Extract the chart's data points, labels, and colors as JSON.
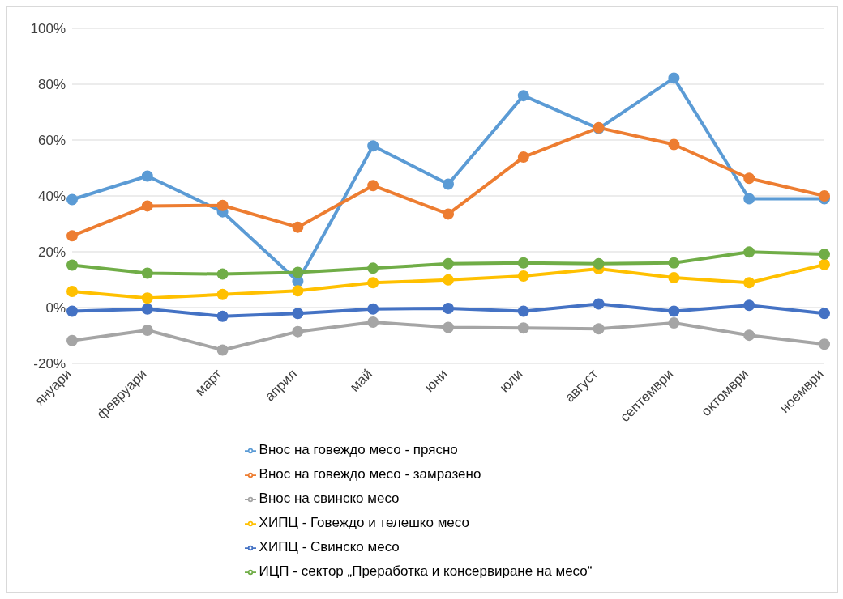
{
  "chart_data": {
    "type": "line",
    "categories": [
      "януари",
      "февруари",
      "март",
      "април",
      "май",
      "юни",
      "юли",
      "август",
      "септември",
      "октомври",
      "ноември"
    ],
    "series": [
      {
        "name": "Внос на говеждо месо - прясно",
        "color": "#5b9bd5",
        "values": [
          38.7,
          47.1,
          34.3,
          9.4,
          57.9,
          44.2,
          75.9,
          64.1,
          82.2,
          39,
          39
        ]
      },
      {
        "name": "Внос на говеждо месо - замразено",
        "color": "#ed7d31",
        "values": [
          25.7,
          36.4,
          36.6,
          28.8,
          43.7,
          33.5,
          53.9,
          64.4,
          58.4,
          46.3,
          40
        ]
      },
      {
        "name": "Внос на свинско месо",
        "color": "#a5a5a5",
        "values": [
          -11.8,
          -8.1,
          -15.2,
          -8.6,
          -5.2,
          -7.1,
          -7.3,
          -7.6,
          -5.5,
          -9.9,
          -13.1
        ]
      },
      {
        "name": "ХИПЦ - Говеждо и телешко месо",
        "color": "#ffc000",
        "values": [
          5.8,
          3.4,
          4.7,
          6,
          8.9,
          9.9,
          11.3,
          13.9,
          10.7,
          8.9,
          15.4
        ]
      },
      {
        "name": "ХИПЦ - Свинско месо",
        "color": "#4472c4",
        "values": [
          -1.3,
          -0.5,
          -3.1,
          -2.1,
          -0.5,
          -0.3,
          -1.3,
          1.3,
          -1.3,
          0.8,
          -2.1
        ]
      },
      {
        "name": "ИЦП - сектор „Преработка и консервиране на месо“",
        "color": "#70ad47",
        "values": [
          15.2,
          12.3,
          12,
          12.6,
          14.1,
          15.7,
          16,
          15.7,
          16,
          19.9,
          19.1
        ]
      }
    ],
    "ylim": [
      -20,
      100
    ],
    "yticks": [
      {
        "value": -20,
        "label": "-20%"
      },
      {
        "value": 0,
        "label": "0%"
      },
      {
        "value": 20,
        "label": "20%"
      },
      {
        "value": 40,
        "label": "40%"
      },
      {
        "value": 60,
        "label": "60%"
      },
      {
        "value": 80,
        "label": "80%"
      },
      {
        "value": 100,
        "label": "100%"
      }
    ],
    "grid": "y",
    "legend": "bottom",
    "marker": "circle",
    "line_style": "solid"
  }
}
